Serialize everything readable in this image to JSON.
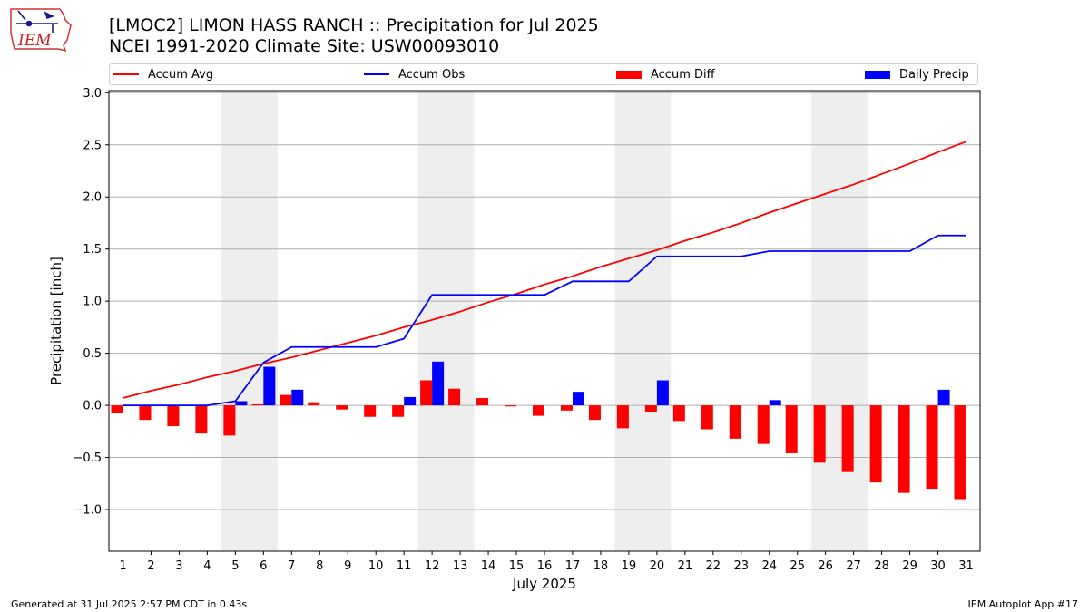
{
  "header": {
    "title_line1": "[LMOC2] LIMON HASS RANCH :: Precipitation for Jul 2025",
    "title_line2": "NCEI 1991-2020 Climate Site: USW00093010",
    "logo_text": "IEM"
  },
  "legend": [
    {
      "label": "Accum Avg",
      "kind": "line",
      "color": "#ff0000"
    },
    {
      "label": "Accum Obs",
      "kind": "line",
      "color": "#0000ff"
    },
    {
      "label": "Accum Diff",
      "kind": "bar",
      "color": "#ff0000"
    },
    {
      "label": "Daily Precip",
      "kind": "bar",
      "color": "#0000ff"
    }
  ],
  "footer": {
    "left": "Generated at 31 Jul 2025 2:57 PM CDT in 0.43s",
    "right": "IEM Autoplot App #17"
  },
  "chart_data": {
    "type": "bar",
    "xlabel": "July 2025",
    "ylabel": "Precipitation [inch]",
    "ylim": [
      -1.4,
      3.02
    ],
    "yticks": [
      -1.0,
      -0.5,
      0.0,
      0.5,
      1.0,
      1.5,
      2.0,
      2.5,
      3.0
    ],
    "ytick_labels": [
      "−1.0",
      "−0.5",
      "0.0",
      "0.5",
      "1.0",
      "1.5",
      "2.0",
      "2.5",
      "3.0"
    ],
    "grid": true,
    "days": [
      1,
      2,
      3,
      4,
      5,
      6,
      7,
      8,
      9,
      10,
      11,
      12,
      13,
      14,
      15,
      16,
      17,
      18,
      19,
      20,
      21,
      22,
      23,
      24,
      25,
      26,
      27,
      28,
      29,
      30,
      31
    ],
    "weekend_shading": [
      [
        5,
        6
      ],
      [
        12,
        13
      ],
      [
        19,
        20
      ],
      [
        26,
        27
      ]
    ],
    "series": [
      {
        "name": "Accum Avg",
        "type": "line",
        "color": "#ff0000",
        "values": [
          0.07,
          0.14,
          0.2,
          0.27,
          0.33,
          0.4,
          0.46,
          0.53,
          0.6,
          0.67,
          0.75,
          0.82,
          0.9,
          0.99,
          1.07,
          1.16,
          1.24,
          1.33,
          1.41,
          1.49,
          1.58,
          1.66,
          1.75,
          1.85,
          1.94,
          2.03,
          2.12,
          2.22,
          2.32,
          2.43,
          2.53
        ]
      },
      {
        "name": "Accum Obs",
        "type": "line",
        "color": "#0000ff",
        "values": [
          0.0,
          0.0,
          0.0,
          0.0,
          0.04,
          0.41,
          0.56,
          0.56,
          0.56,
          0.56,
          0.64,
          1.06,
          1.06,
          1.06,
          1.06,
          1.06,
          1.19,
          1.19,
          1.19,
          1.43,
          1.43,
          1.43,
          1.43,
          1.48,
          1.48,
          1.48,
          1.48,
          1.48,
          1.48,
          1.63,
          1.63
        ]
      },
      {
        "name": "Accum Diff",
        "type": "bar",
        "color": "#ff0000",
        "values": [
          -0.07,
          -0.14,
          -0.2,
          -0.27,
          -0.29,
          0.01,
          0.1,
          0.03,
          -0.04,
          -0.11,
          -0.11,
          0.24,
          0.16,
          0.07,
          -0.01,
          -0.1,
          -0.05,
          -0.14,
          -0.22,
          -0.06,
          -0.15,
          -0.23,
          -0.32,
          -0.37,
          -0.46,
          -0.55,
          -0.64,
          -0.74,
          -0.84,
          -0.8,
          -0.9
        ]
      },
      {
        "name": "Daily Precip",
        "type": "bar",
        "color": "#0000ff",
        "values": [
          0,
          0,
          0,
          0,
          0.04,
          0.37,
          0.15,
          0,
          0,
          0,
          0.08,
          0.42,
          0,
          0,
          0,
          0,
          0.13,
          0,
          0,
          0.24,
          0,
          0,
          0,
          0.05,
          0,
          0,
          0,
          0,
          0,
          0.15,
          0
        ]
      }
    ]
  }
}
